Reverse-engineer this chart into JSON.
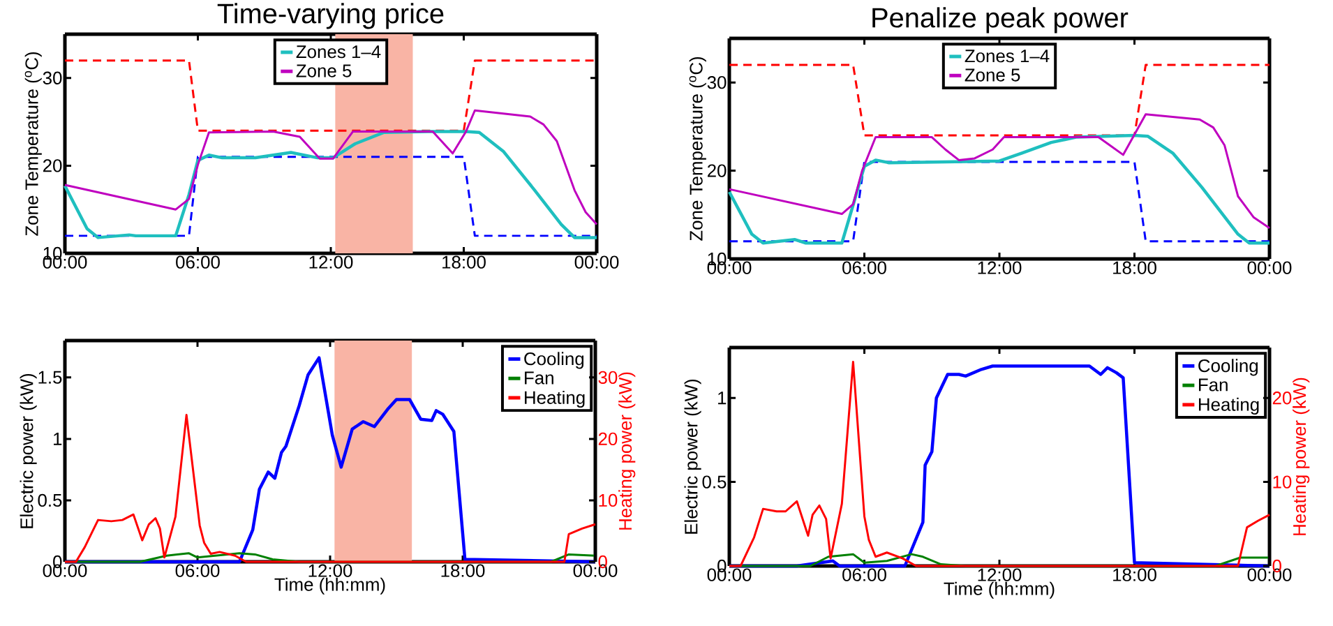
{
  "chart_data": [
    {
      "type": "line",
      "title": "Time-varying price",
      "ylabel": "Zone Temperature ($^{o}$C)",
      "xlim": [
        0,
        24
      ],
      "ylim": [
        10,
        35
      ],
      "yticks": [
        10,
        20,
        30
      ],
      "xticks": [
        {
          "value": 0,
          "label": "00:00"
        },
        {
          "value": 6,
          "label": "06:00"
        },
        {
          "value": 12,
          "label": "12:00"
        },
        {
          "value": 18,
          "label": "18:00"
        },
        {
          "value": 24,
          "label": "00:00"
        }
      ],
      "legend": "top",
      "bands": [
        {
          "axis": "x",
          "from": 12.2,
          "to": 15.7,
          "color": "#f9b4a5"
        }
      ],
      "series": [
        {
          "color": "#ff0000",
          "line_style": "dashed",
          "x": [
            0,
            5.6,
            6.0,
            18.0,
            18.5,
            24
          ],
          "values": [
            32,
            32,
            24,
            24,
            32,
            32
          ]
        },
        {
          "color": "#0000ff",
          "line_style": "dashed",
          "x": [
            0,
            5.6,
            6.0,
            18.0,
            18.5,
            24
          ],
          "values": [
            12,
            12,
            21,
            21,
            12,
            12
          ]
        },
        {
          "name": "Zones 1–4",
          "color": "#1fbfbf",
          "x": [
            0,
            1.0,
            1.5,
            2.9,
            3.2,
            5.0,
            5.6,
            6.0,
            6.5,
            7.1,
            8.6,
            10.2,
            11.4,
            12.1,
            13.1,
            14.4,
            16.4,
            18.1,
            18.7,
            19.8,
            21.2,
            22.4,
            23.0,
            24
          ],
          "values": [
            17.7,
            12.8,
            11.8,
            12.1,
            12,
            12,
            16.7,
            20.6,
            21.2,
            20.9,
            20.9,
            21.5,
            20.9,
            20.9,
            22.5,
            23.8,
            23.9,
            23.9,
            23.8,
            21.6,
            17.2,
            13.3,
            11.8,
            11.8
          ]
        },
        {
          "name": "Zone 5",
          "color": "#bf00bf",
          "x": [
            0,
            5.0,
            5.6,
            6.0,
            6.5,
            9.4,
            10.6,
            11.5,
            12.1,
            13.0,
            16.6,
            17.5,
            18.1,
            18.5,
            21.0,
            21.6,
            22.2,
            23.0,
            23.5,
            24
          ],
          "values": [
            17.8,
            15.0,
            16.2,
            20.1,
            23.8,
            23.9,
            23.3,
            20.8,
            20.8,
            23.9,
            23.9,
            21.4,
            23.9,
            26.3,
            25.6,
            24.7,
            22.8,
            17.2,
            14.7,
            13.3
          ]
        }
      ]
    },
    {
      "type": "line",
      "title": "Penalize peak power",
      "ylabel": "Zone Temperature ($^{o}$C)",
      "xlim": [
        0,
        24
      ],
      "ylim": [
        10,
        35
      ],
      "yticks": [
        10,
        20,
        30
      ],
      "xticks": [
        {
          "value": 0,
          "label": "00:00"
        },
        {
          "value": 6,
          "label": "06:00"
        },
        {
          "value": 12,
          "label": "12:00"
        },
        {
          "value": 18,
          "label": "18:00"
        },
        {
          "value": 24,
          "label": "00:00"
        }
      ],
      "legend": "top",
      "series": [
        {
          "color": "#ff0000",
          "line_style": "dashed",
          "x": [
            0,
            5.5,
            6.0,
            18.0,
            18.5,
            24
          ],
          "values": [
            32,
            32,
            24,
            24,
            32,
            32
          ]
        },
        {
          "color": "#0000ff",
          "line_style": "dashed",
          "x": [
            0,
            5.5,
            6.0,
            18.0,
            18.5,
            24
          ],
          "values": [
            12,
            12,
            21,
            21,
            12,
            12
          ]
        },
        {
          "name": "Zones 1–4",
          "color": "#1fbfbf",
          "x": [
            0,
            1.0,
            1.5,
            2.9,
            3.4,
            5.0,
            5.5,
            6.0,
            6.5,
            7.1,
            12.0,
            13.0,
            14.3,
            15.4,
            18.0,
            18.6,
            19.7,
            21.0,
            22.6,
            23.1,
            24
          ],
          "values": [
            17.6,
            12.8,
            11.8,
            12.2,
            11.8,
            11.8,
            16.1,
            20.5,
            21.2,
            20.9,
            21.1,
            22.0,
            23.2,
            23.8,
            24.0,
            23.9,
            22.0,
            18.1,
            12.8,
            11.8,
            11.8
          ]
        },
        {
          "name": "Zone 5",
          "color": "#bf00bf",
          "x": [
            0,
            5.0,
            5.5,
            5.9,
            6.5,
            9.0,
            9.6,
            10.2,
            10.9,
            11.7,
            12.2,
            16.4,
            16.9,
            17.5,
            18.0,
            18.5,
            20.9,
            21.5,
            22.0,
            22.6,
            23.3,
            24
          ],
          "values": [
            17.9,
            15.1,
            16.2,
            20.0,
            23.8,
            23.8,
            22.4,
            21.2,
            21.4,
            22.4,
            23.8,
            23.8,
            22.9,
            21.8,
            24.1,
            26.4,
            25.8,
            24.9,
            22.9,
            17.1,
            14.7,
            13.5
          ]
        }
      ]
    },
    {
      "type": "line",
      "xlabel": "Time (hh:mm)",
      "ylabel": "Electric power (kW)",
      "y2label": "Heating power (kW)",
      "xlim": [
        0,
        24
      ],
      "ylim": [
        0,
        1.8
      ],
      "yticks": [
        0,
        0.5,
        1,
        1.5
      ],
      "y2lim": [
        0,
        36
      ],
      "y2ticks": [
        0,
        10,
        20,
        30
      ],
      "xticks": [
        {
          "value": 0,
          "label": "00:00"
        },
        {
          "value": 6,
          "label": "06:00"
        },
        {
          "value": 12,
          "label": "12:00"
        },
        {
          "value": 18,
          "label": "18:00"
        },
        {
          "value": 24,
          "label": "00:00"
        }
      ],
      "legend": "top right",
      "bands": [
        {
          "axis": "x",
          "from": 12.2,
          "to": 15.7,
          "color": "#f9b4a5"
        }
      ],
      "series": [
        {
          "name": "Cooling",
          "color": "#0000ff",
          "x": [
            0,
            7.9,
            8.5,
            8.8,
            9.2,
            9.5,
            9.8,
            10.0,
            10.6,
            11.0,
            11.5,
            12.1,
            12.5,
            13.0,
            13.5,
            14.0,
            14.6,
            15.0,
            15.6,
            16.1,
            16.6,
            16.8,
            17.1,
            17.6,
            18.1,
            24
          ],
          "values": [
            0,
            0,
            0.26,
            0.59,
            0.73,
            0.68,
            0.89,
            0.94,
            1.27,
            1.52,
            1.66,
            1.03,
            0.77,
            1.08,
            1.14,
            1.1,
            1.24,
            1.32,
            1.32,
            1.16,
            1.15,
            1.23,
            1.2,
            1.06,
            0.02,
            0
          ]
        },
        {
          "name": "Fan",
          "color": "#008000",
          "x": [
            0,
            3.4,
            4.6,
            5.6,
            6.0,
            7.9,
            8.6,
            9.4,
            10.6,
            22.0,
            22.8,
            24
          ],
          "values": [
            0,
            0,
            0.05,
            0.07,
            0.035,
            0.07,
            0.06,
            0.02,
            0,
            0,
            0.06,
            0.05
          ]
        },
        {
          "name": "Heating",
          "color": "#ff0000",
          "axis": "y2",
          "x": [
            0,
            0.5,
            0.9,
            1.5,
            2.1,
            2.6,
            3.1,
            3.5,
            3.8,
            4.1,
            4.3,
            4.5,
            5.0,
            5.5,
            6.1,
            6.3,
            6.6,
            7.0,
            7.7,
            8.2,
            22.6,
            22.8,
            23.4,
            24
          ],
          "values": [
            0,
            0,
            2.4,
            6.8,
            6.6,
            6.8,
            7.7,
            3.5,
            6.1,
            7.1,
            5.4,
            0.7,
            7.3,
            23.9,
            5.9,
            3.1,
            1.3,
            1.6,
            1.0,
            0,
            0,
            4.5,
            5.4,
            6.1
          ]
        }
      ]
    },
    {
      "type": "line",
      "xlabel": "Time (hh:mm)",
      "ylabel": "Electric power (kW)",
      "y2label": "Heating power (kW)",
      "xlim": [
        0,
        24
      ],
      "ylim": [
        0,
        1.3
      ],
      "yticks": [
        0,
        0.5,
        1
      ],
      "y2lim": [
        0,
        26
      ],
      "y2ticks": [
        0,
        10,
        20
      ],
      "xticks": [
        {
          "value": 0,
          "label": "00:00"
        },
        {
          "value": 6,
          "label": "06:00"
        },
        {
          "value": 12,
          "label": "12:00"
        },
        {
          "value": 18,
          "label": "18:00"
        },
        {
          "value": 24,
          "label": "00:00"
        }
      ],
      "legend": "top right",
      "series": [
        {
          "name": "Cooling",
          "color": "#0000ff",
          "x": [
            0,
            3.0,
            4.6,
            4.9,
            7.8,
            8.6,
            8.7,
            9.0,
            9.2,
            9.7,
            10.2,
            10.5,
            11.2,
            11.7,
            16.0,
            16.5,
            16.8,
            17.2,
            17.5,
            18.0,
            24
          ],
          "values": [
            0,
            0,
            0.03,
            0,
            0,
            0.26,
            0.6,
            0.68,
            1.0,
            1.14,
            1.14,
            1.13,
            1.17,
            1.19,
            1.19,
            1.14,
            1.18,
            1.15,
            1.12,
            0.02,
            0
          ]
        },
        {
          "name": "Fan",
          "color": "#008000",
          "x": [
            0,
            3.6,
            4.4,
            5.5,
            6.0,
            7.0,
            8.1,
            8.6,
            9.4,
            10.5,
            21.6,
            22.7,
            24
          ],
          "values": [
            0,
            0,
            0.055,
            0.07,
            0.02,
            0.03,
            0.07,
            0.055,
            0.01,
            0,
            0,
            0.05,
            0.05
          ]
        },
        {
          "name": "Heating",
          "color": "#ff0000",
          "axis": "y2",
          "x": [
            0,
            0.5,
            1.1,
            1.5,
            2.1,
            2.5,
            3.0,
            3.5,
            3.7,
            4.0,
            4.3,
            4.5,
            5.0,
            5.5,
            6.0,
            6.2,
            6.5,
            7.0,
            7.7,
            8.3,
            22.6,
            23.0,
            23.5,
            24
          ],
          "values": [
            0,
            0,
            3.4,
            6.8,
            6.5,
            6.5,
            7.7,
            3.6,
            6.1,
            7.2,
            5.6,
            0.9,
            7.4,
            24.3,
            5.9,
            3.1,
            1.1,
            1.6,
            0.9,
            0,
            0,
            4.6,
            5.4,
            6.1
          ]
        }
      ]
    }
  ]
}
